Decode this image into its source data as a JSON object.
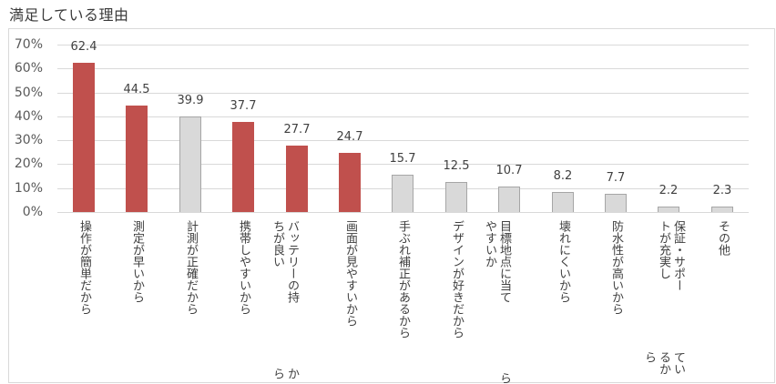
{
  "title": "満足している理由",
  "colors": {
    "highlight": "#c0504d",
    "normal": "#d9d9d9",
    "normal_border": "#a6a6a6",
    "grid": "#d9d9d9"
  },
  "y_axis": {
    "ticks": [
      "0%",
      "10%",
      "20%",
      "30%",
      "40%",
      "50%",
      "60%",
      "70%"
    ]
  },
  "bars": [
    {
      "label_lines": [
        "操作が簡単だから"
      ],
      "value": "62.4",
      "highlight": true
    },
    {
      "label_lines": [
        "測定が早いから"
      ],
      "value": "44.5",
      "highlight": true
    },
    {
      "label_lines": [
        "計測が正確だから"
      ],
      "value": "39.9",
      "highlight": false
    },
    {
      "label_lines": [
        "携帯しやすいから"
      ],
      "value": "37.7",
      "highlight": true
    },
    {
      "label_lines": [
        "バッテリーの持ちが良い",
        "から"
      ],
      "value": "27.7",
      "highlight": true
    },
    {
      "label_lines": [
        "画面が見やすいから"
      ],
      "value": "24.7",
      "highlight": true
    },
    {
      "label_lines": [
        "手ぶれ補正があるから"
      ],
      "value": "15.7",
      "highlight": false
    },
    {
      "label_lines": [
        "デザインが好きだから"
      ],
      "value": "12.5",
      "highlight": false
    },
    {
      "label_lines": [
        "目標地点に当てやすいか",
        "ら"
      ],
      "value": "10.7",
      "highlight": false
    },
    {
      "label_lines": [
        "壊れにくいから"
      ],
      "value": "8.2",
      "highlight": false
    },
    {
      "label_lines": [
        "防水性が高いから"
      ],
      "value": "7.7",
      "highlight": false
    },
    {
      "label_lines": [
        "保証・サポートが充実し",
        "ているから"
      ],
      "value": "2.2",
      "highlight": false
    },
    {
      "label_lines": [
        "その他"
      ],
      "value": "2.3",
      "highlight": false
    }
  ],
  "chart_data": {
    "type": "bar",
    "title": "満足している理由",
    "xlabel": "",
    "ylabel": "",
    "ylim": [
      0,
      70
    ],
    "y_tick_labels": [
      "0%",
      "10%",
      "20%",
      "30%",
      "40%",
      "50%",
      "60%",
      "70%"
    ],
    "grid": true,
    "legend": null,
    "categories": [
      "操作が簡単だから",
      "測定が早いから",
      "計測が正確だから",
      "携帯しやすいから",
      "バッテリーの持ちが良いから",
      "画面が見やすいから",
      "手ぶれ補正があるから",
      "デザインが好きだから",
      "目標地点に当てやすいから",
      "壊れにくいから",
      "防水性が高いから",
      "保証・サポートが充実しているから",
      "その他"
    ],
    "values": [
      62.4,
      44.5,
      39.9,
      37.7,
      27.7,
      24.7,
      15.7,
      12.5,
      10.7,
      8.2,
      7.7,
      2.2,
      2.3
    ],
    "highlighted": [
      true,
      true,
      false,
      true,
      true,
      true,
      false,
      false,
      false,
      false,
      false,
      false,
      false
    ],
    "annotations": "data labels shown above each bar (values in %)"
  }
}
